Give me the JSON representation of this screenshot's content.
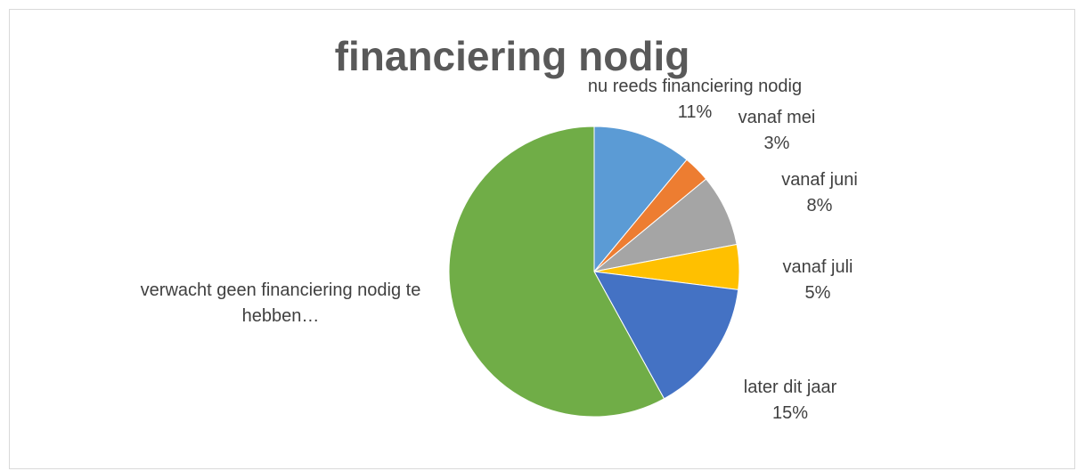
{
  "chart_data": {
    "type": "pie",
    "title": "financiering nodig",
    "categories": [
      "nu reeds financiering nodig",
      "vanaf mei",
      "vanaf juni",
      "vanaf juli",
      "later dit jaar",
      "verwacht geen financiering nodig te hebben…"
    ],
    "values": [
      11,
      3,
      8,
      5,
      15,
      58
    ],
    "value_labels": [
      "11%",
      "3%",
      "8%",
      "5%",
      "15%",
      null
    ],
    "colors": [
      "#5b9bd5",
      "#ed7d31",
      "#a5a5a5",
      "#ffc000",
      "#4472c4",
      "#70ad47"
    ]
  }
}
